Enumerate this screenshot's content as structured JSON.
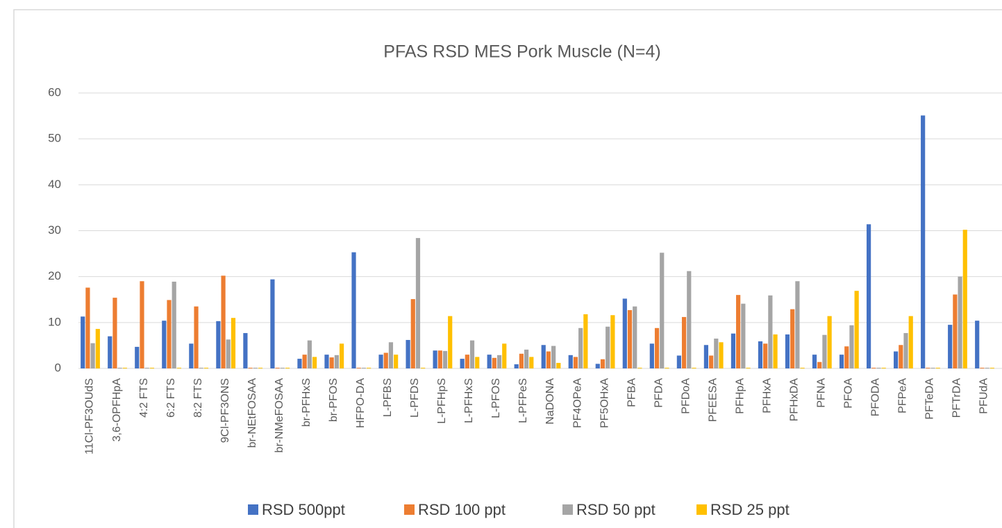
{
  "chart_data": {
    "type": "bar",
    "title": "PFAS RSD MES Pork Muscle (N=4)",
    "categories": [
      "11Cl-PF3OUdS",
      "3,6-OPFHpA",
      "4:2 FTS",
      "6:2 FTS",
      "8:2 FTS",
      "9Cl-PF3ONS",
      "br-NEtFOSAA",
      "br-NMeFOSAA",
      "br-PFHxS",
      "br-PFOS",
      "HFPO-DA",
      "L-PFBS",
      "L-PFDS",
      "L-PFHpS",
      "L-PFHxS",
      "L-PFOS",
      "L-PFPeS",
      "NaDONA",
      "PF4OPeA",
      "PF5OHxA",
      "PFBA",
      "PFDA",
      "PFDoA",
      "PFEESA",
      "PFHpA",
      "PFHxA",
      "PFHxDA",
      "PFNA",
      "PFOA",
      "PFODA",
      "PFPeA",
      "PFTeDA",
      "PFTrDA",
      "PFUdA"
    ],
    "series": [
      {
        "name": "RSD 500ppt",
        "color": "#4472c4",
        "values": [
          11.3,
          7.0,
          4.7,
          10.4,
          5.4,
          10.3,
          7.7,
          19.4,
          2.1,
          3.0,
          25.3,
          3.0,
          6.2,
          3.9,
          2.1,
          3.0,
          0.9,
          5.1,
          2.9,
          1.0,
          15.2,
          5.4,
          2.8,
          5.1,
          7.6,
          5.9,
          7.4,
          3.0,
          3.0,
          31.4,
          3.7,
          55.1,
          9.5,
          10.4
        ]
      },
      {
        "name": "RSD 100 ppt",
        "color": "#ed7d31",
        "values": [
          17.6,
          15.4,
          19.0,
          14.9,
          13.5,
          20.2,
          0,
          0,
          3.0,
          2.4,
          0,
          3.4,
          15.1,
          3.9,
          3.0,
          2.3,
          3.2,
          3.7,
          2.5,
          2.0,
          12.7,
          8.8,
          11.2,
          2.8,
          16.0,
          5.4,
          12.9,
          1.4,
          4.8,
          0,
          5.1,
          0,
          16.1,
          0
        ]
      },
      {
        "name": "RSD 50 ppt",
        "color": "#a5a5a5",
        "values": [
          5.5,
          0,
          0,
          18.9,
          0,
          6.3,
          0,
          0,
          6.1,
          2.9,
          0,
          5.7,
          28.4,
          3.8,
          6.1,
          2.9,
          4.1,
          4.9,
          8.8,
          9.1,
          13.5,
          25.2,
          21.2,
          6.5,
          14.1,
          15.9,
          19.0,
          7.3,
          9.4,
          0,
          7.7,
          0,
          20.0,
          0
        ]
      },
      {
        "name": "RSD 25 ppt",
        "color": "#ffc000",
        "values": [
          8.6,
          0,
          0,
          0,
          0,
          11.0,
          0,
          0,
          2.5,
          5.4,
          0,
          3.0,
          0,
          11.4,
          2.5,
          5.4,
          2.5,
          1.2,
          11.8,
          11.6,
          0,
          0,
          0,
          5.7,
          0,
          7.4,
          0,
          11.4,
          16.9,
          0,
          11.4,
          0,
          30.2,
          0
        ]
      }
    ],
    "ylim": [
      0,
      60
    ],
    "yticks": [
      0,
      10,
      20,
      30,
      40,
      50,
      60
    ],
    "grid": true
  }
}
